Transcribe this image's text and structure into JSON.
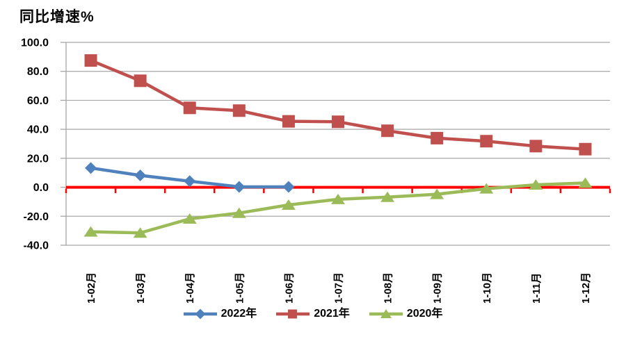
{
  "chart_data": {
    "type": "line",
    "title": "同比增速%",
    "categories": [
      "1-02月",
      "1-03月",
      "1-04月",
      "1-05月",
      "1-06月",
      "1-07月",
      "1-08月",
      "1-09月",
      "1-10月",
      "1-11月",
      "1-12月"
    ],
    "series": [
      {
        "name": "2022年",
        "color": "#4F81BD",
        "marker": "diamond",
        "values": [
          13.3,
          8.2,
          4.2,
          0.3,
          0.3
        ]
      },
      {
        "name": "2021年",
        "color": "#C0504D",
        "marker": "square",
        "values": [
          87.5,
          73.5,
          54.8,
          52.9,
          45.5,
          45.2,
          39.0,
          33.9,
          31.8,
          28.4,
          26.3
        ]
      },
      {
        "name": "2020年",
        "color": "#9BBB59",
        "marker": "triangle",
        "values": [
          -30.7,
          -31.5,
          -21.8,
          -17.8,
          -12.2,
          -8.3,
          -6.8,
          -4.8,
          -1.0,
          1.7,
          3.0
        ]
      }
    ],
    "ylim": [
      -40,
      100
    ],
    "y_step": 20,
    "y_tick_labels": [
      "100.0",
      "80.0",
      "60.0",
      "40.0",
      "20.0",
      "0.0",
      "-20.0",
      "-40.0"
    ],
    "grid": true,
    "legend_position": "bottom",
    "colors": {
      "zero_line": "#FF0000",
      "gridline": "#A6A6A6",
      "axis": "#A6A6A6",
      "text": "#000000"
    }
  }
}
